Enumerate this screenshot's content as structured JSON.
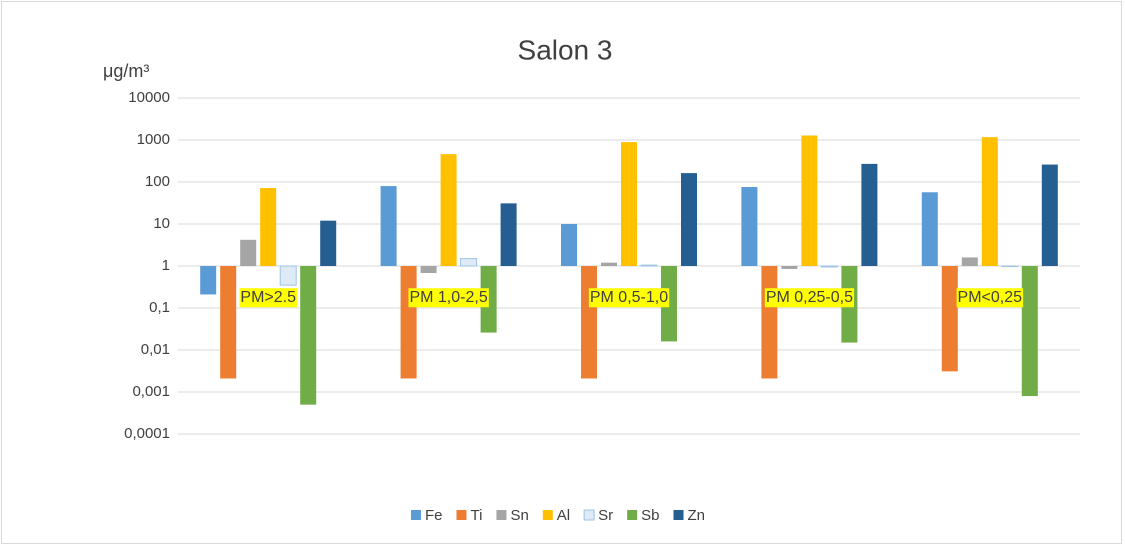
{
  "chart_data": {
    "type": "bar",
    "title": "Salon 3",
    "y_label": "μg/m³",
    "log_scale": true,
    "grid": true,
    "categories": [
      "PM>2.5",
      "PM 1,0-2,5",
      "PM 0,5-1,0",
      "PM 0,25-0,5",
      "PM<0,25"
    ],
    "series": [
      {
        "name": "Fe",
        "color": "#5b9bd5",
        "values": [
          0.21,
          80,
          10,
          76,
          57
        ]
      },
      {
        "name": "Ti",
        "color": "#ed7d31",
        "values": [
          0.0021,
          0.0021,
          0.0021,
          0.0021,
          0.0031
        ]
      },
      {
        "name": "Sn",
        "color": "#a5a5a5",
        "values": [
          4.2,
          0.68,
          1.2,
          0.85,
          1.6
        ]
      },
      {
        "name": "Al",
        "color": "#ffc000",
        "values": [
          72,
          460,
          890,
          1280,
          1170
        ]
      },
      {
        "name": "Sr",
        "color": "#deebf7",
        "values": [
          0.35,
          1.5,
          1.05,
          0.95,
          0.97
        ]
      },
      {
        "name": "Sb",
        "color": "#70ad47",
        "values": [
          0.0005,
          0.026,
          0.016,
          0.015,
          0.0008
        ]
      },
      {
        "name": "Zn",
        "color": "#255e91",
        "values": [
          12,
          31,
          163,
          270,
          260
        ]
      }
    ],
    "ylim": [
      0.0001,
      10000
    ],
    "yticks": [
      {
        "value": 0.0001,
        "label": "0,0001"
      },
      {
        "value": 0.001,
        "label": "0,001"
      },
      {
        "value": 0.01,
        "label": "0,01"
      },
      {
        "value": 0.1,
        "label": "0,1"
      },
      1,
      10,
      100,
      1000,
      10000
    ],
    "category_label_color": "#ffff00",
    "legend": "bottom"
  }
}
